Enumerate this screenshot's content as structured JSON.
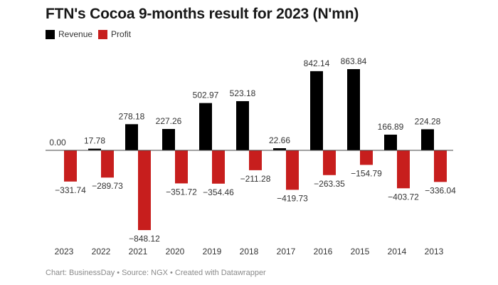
{
  "chart_data": {
    "type": "bar",
    "title": "FTN's Cocoa 9-months result for 2023 (N'mn)",
    "categories": [
      "2023",
      "2022",
      "2021",
      "2020",
      "2019",
      "2018",
      "2017",
      "2016",
      "2015",
      "2014",
      "2013"
    ],
    "series": [
      {
        "name": "Revenue",
        "color": "#000000",
        "values": [
          0.0,
          17.78,
          278.18,
          227.26,
          502.97,
          523.18,
          22.66,
          842.14,
          863.84,
          166.89,
          224.28
        ]
      },
      {
        "name": "Profit",
        "color": "#c71e1d",
        "values": [
          -331.74,
          -289.73,
          -848.12,
          -351.72,
          -354.46,
          -211.28,
          -419.73,
          -263.35,
          -154.79,
          -403.72,
          -336.04
        ]
      }
    ],
    "legend": "top-left",
    "grid": false,
    "footer": "Chart: BusinessDay • Source: NGX • Created with Datawrapper"
  }
}
